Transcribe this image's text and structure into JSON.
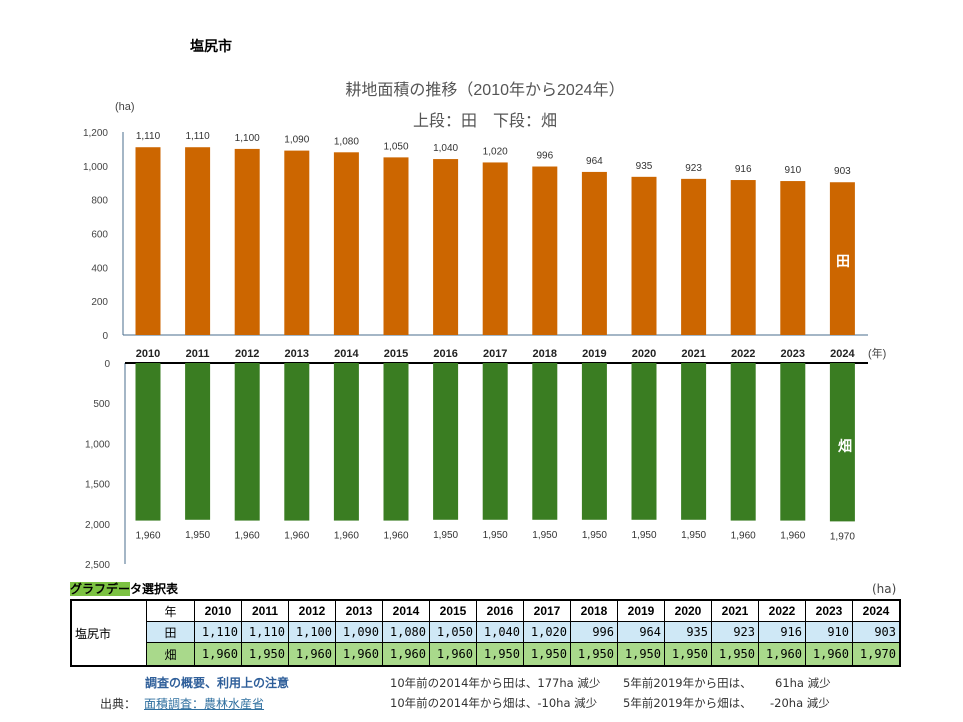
{
  "city": "塩尻市",
  "chart_data": [
    {
      "type": "bar",
      "title": "耕地面積の推移（2010年から2024年）",
      "subtitle": "上段：田　下段：畑",
      "ylabel": "(ha)",
      "xlabel": "(年)",
      "series_label": "田",
      "color": "#cc6600",
      "categories": [
        "2010",
        "2011",
        "2012",
        "2013",
        "2014",
        "2015",
        "2016",
        "2017",
        "2018",
        "2019",
        "2020",
        "2021",
        "2022",
        "2023",
        "2024"
      ],
      "values": [
        1110,
        1110,
        1100,
        1090,
        1080,
        1050,
        1040,
        1020,
        996,
        964,
        935,
        923,
        916,
        910,
        903
      ],
      "data_labels": [
        "1,110",
        "1,110",
        "1,100",
        "1,090",
        "1,080",
        "1,050",
        "1,040",
        "1,020",
        "996",
        "964",
        "935",
        "923",
        "916",
        "910",
        "903"
      ],
      "ylim": [
        0,
        1200
      ],
      "yticks": [
        "0",
        "200",
        "400",
        "600",
        "800",
        "1,000",
        "1,200"
      ]
    },
    {
      "type": "bar",
      "series_label": "畑",
      "color": "#3a7d22",
      "inverted": true,
      "categories": [
        "2010",
        "2011",
        "2012",
        "2013",
        "2014",
        "2015",
        "2016",
        "2017",
        "2018",
        "2019",
        "2020",
        "2021",
        "2022",
        "2023",
        "2024"
      ],
      "values": [
        1960,
        1950,
        1960,
        1960,
        1960,
        1960,
        1950,
        1950,
        1950,
        1950,
        1950,
        1950,
        1960,
        1960,
        1970
      ],
      "data_labels": [
        "1,960",
        "1,950",
        "1,960",
        "1,960",
        "1,960",
        "1,960",
        "1,950",
        "1,950",
        "1,950",
        "1,950",
        "1,950",
        "1,950",
        "1,960",
        "1,960",
        "1,970"
      ],
      "ylim": [
        0,
        2500
      ],
      "yticks": [
        "0",
        "500",
        "1,000",
        "1,500",
        "2,000",
        "2,500"
      ]
    }
  ],
  "table": {
    "title_hl": "グラフデー",
    "title_rest": "タ選択表",
    "unit": "(ha)",
    "city": "塩尻市",
    "year_label": "年",
    "ta_label": "田",
    "ha_label": "畑",
    "years": [
      "2010",
      "2011",
      "2012",
      "2013",
      "2014",
      "2015",
      "2016",
      "2017",
      "2018",
      "2019",
      "2020",
      "2021",
      "2022",
      "2023",
      "2024"
    ],
    "ta": [
      "1,110",
      "1,110",
      "1,100",
      "1,090",
      "1,080",
      "1,050",
      "1,040",
      "1,020",
      "996",
      "964",
      "935",
      "923",
      "916",
      "910",
      "903"
    ],
    "ha": [
      "1,960",
      "1,950",
      "1,960",
      "1,960",
      "1,960",
      "1,960",
      "1,950",
      "1,950",
      "1,950",
      "1,950",
      "1,950",
      "1,950",
      "1,960",
      "1,960",
      "1,970"
    ]
  },
  "footer": {
    "overview_link": "調査の概要、利用上の注意",
    "source_label": "出典：",
    "source_link": "面積調査：農林水産省",
    "note1a": "10年前の2014年から田は、177ha 減少",
    "note1b": "5年前2019年から田は、",
    "note1c": "61ha 減少",
    "note2a": "10年前の2014年から畑は、-10ha 減少",
    "note2b": "5年前2019年から畑は、",
    "note2c": "-20ha 減少"
  }
}
